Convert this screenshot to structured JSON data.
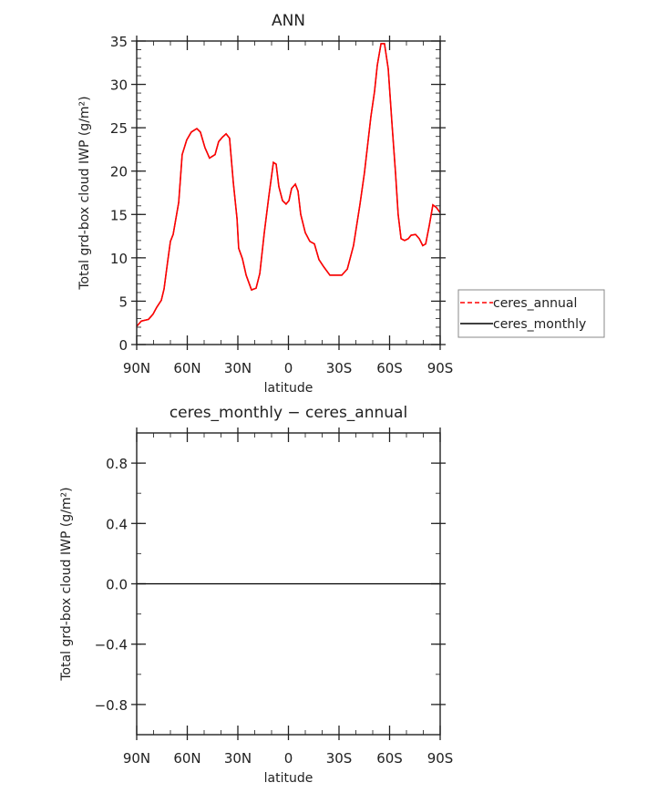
{
  "chart_data": [
    {
      "type": "line",
      "title": "ANN",
      "xlabel": "latitude",
      "ylabel": "Total grd-box cloud IWP (g/m²)",
      "xlim": [
        90,
        -90
      ],
      "ylim": [
        0,
        35
      ],
      "xticks": [
        90,
        60,
        30,
        0,
        -30,
        -60,
        -90
      ],
      "xtick_labels": [
        "90N",
        "60N",
        "30N",
        "0",
        "30S",
        "60S",
        "90S"
      ],
      "yticks": [
        0,
        5,
        10,
        15,
        20,
        25,
        30,
        35
      ],
      "ytick_labels": [
        "0",
        "5",
        "10",
        "15",
        "20",
        "25",
        "30",
        "35"
      ],
      "grid": false,
      "legend_placement": "right",
      "x": [
        90,
        87.3,
        83.0,
        80.3,
        78.1,
        75.4,
        73.8,
        71.6,
        70.0,
        68.4,
        65.1,
        63.0,
        60.3,
        57.6,
        54.3,
        52.2,
        49.5,
        46.8,
        43.5,
        41.4,
        39.2,
        37.0,
        34.9,
        32.7,
        30.5,
        29.5,
        27.3,
        25.1,
        21.9,
        19.2,
        17.0,
        14.3,
        11.6,
        8.9,
        7.3,
        5.7,
        3.5,
        1.4,
        -0.3,
        -1.9,
        -4.1,
        -5.7,
        -7.3,
        -10.0,
        -12.7,
        -15.4,
        -18.1,
        -20.8,
        -24.6,
        -27.8,
        -31.6,
        -34.9,
        -38.6,
        -42.4,
        -45.1,
        -48.9,
        -51.1,
        -52.7,
        -54.9,
        -57.0,
        -59.2,
        -61.4,
        -63.5,
        -65.1,
        -66.8,
        -68.9,
        -71.1,
        -72.7,
        -75.4,
        -77.6,
        -79.7,
        -81.4,
        -83.5,
        -85.7,
        -87.8,
        -90
      ],
      "series": [
        {
          "name": "ceres_annual",
          "color": "#ff0000",
          "dash": "dashed",
          "values": [
            2.1,
            2.7,
            2.9,
            3.5,
            4.3,
            5.1,
            6.4,
            9.6,
            11.9,
            12.7,
            16.4,
            21.9,
            23.6,
            24.5,
            24.9,
            24.5,
            22.7,
            21.5,
            21.9,
            23.4,
            23.9,
            24.3,
            23.8,
            18.7,
            14.5,
            11.1,
            9.9,
            8.0,
            6.3,
            6.5,
            8.2,
            12.9,
            17.1,
            21.0,
            20.8,
            18.2,
            16.6,
            16.2,
            16.6,
            18.0,
            18.5,
            17.7,
            15.0,
            12.9,
            11.9,
            11.6,
            9.8,
            9.0,
            8.0,
            8.0,
            8.0,
            8.7,
            11.4,
            16.1,
            19.8,
            26.3,
            29.2,
            32.2,
            34.7,
            34.7,
            31.8,
            25.5,
            19.8,
            15.0,
            12.2,
            12.0,
            12.2,
            12.6,
            12.7,
            12.2,
            11.4,
            11.6,
            13.7,
            16.1,
            15.8,
            15.2
          ]
        },
        {
          "name": "ceres_monthly",
          "color": "#000000",
          "dash": "solid",
          "values": [
            2.1,
            2.7,
            2.9,
            3.5,
            4.3,
            5.1,
            6.4,
            9.6,
            11.9,
            12.7,
            16.4,
            21.9,
            23.6,
            24.5,
            24.9,
            24.5,
            22.7,
            21.5,
            21.9,
            23.4,
            23.9,
            24.3,
            23.8,
            18.7,
            14.5,
            11.1,
            9.9,
            8.0,
            6.3,
            6.5,
            8.2,
            12.9,
            17.1,
            21.0,
            20.8,
            18.2,
            16.6,
            16.2,
            16.6,
            18.0,
            18.5,
            17.7,
            15.0,
            12.9,
            11.9,
            11.6,
            9.8,
            9.0,
            8.0,
            8.0,
            8.0,
            8.7,
            11.4,
            16.1,
            19.8,
            26.3,
            29.2,
            32.2,
            34.7,
            34.7,
            31.8,
            25.5,
            19.8,
            15.0,
            12.2,
            12.0,
            12.2,
            12.6,
            12.7,
            12.2,
            11.4,
            11.6,
            13.7,
            16.1,
            15.8,
            15.2
          ]
        }
      ]
    },
    {
      "type": "line",
      "title": "ceres_monthly − ceres_annual",
      "xlabel": "latitude",
      "ylabel": "Total grd-box cloud IWP (g/m²)",
      "xlim": [
        90,
        -90
      ],
      "ylim": [
        -1,
        1
      ],
      "xticks": [
        90,
        60,
        30,
        0,
        -30,
        -60,
        -90
      ],
      "xtick_labels": [
        "90N",
        "60N",
        "30N",
        "0",
        "30S",
        "60S",
        "90S"
      ],
      "yticks": [
        0.8,
        0.4,
        0,
        -0.4,
        -0.8
      ],
      "ytick_labels": [
        "0.8",
        "0.4",
        "0.0",
        "−0.4",
        "−0.8"
      ],
      "grid": false,
      "x": [
        90,
        -90
      ],
      "series": [
        {
          "color": "#000000",
          "values": [
            0,
            0
          ]
        }
      ]
    }
  ]
}
